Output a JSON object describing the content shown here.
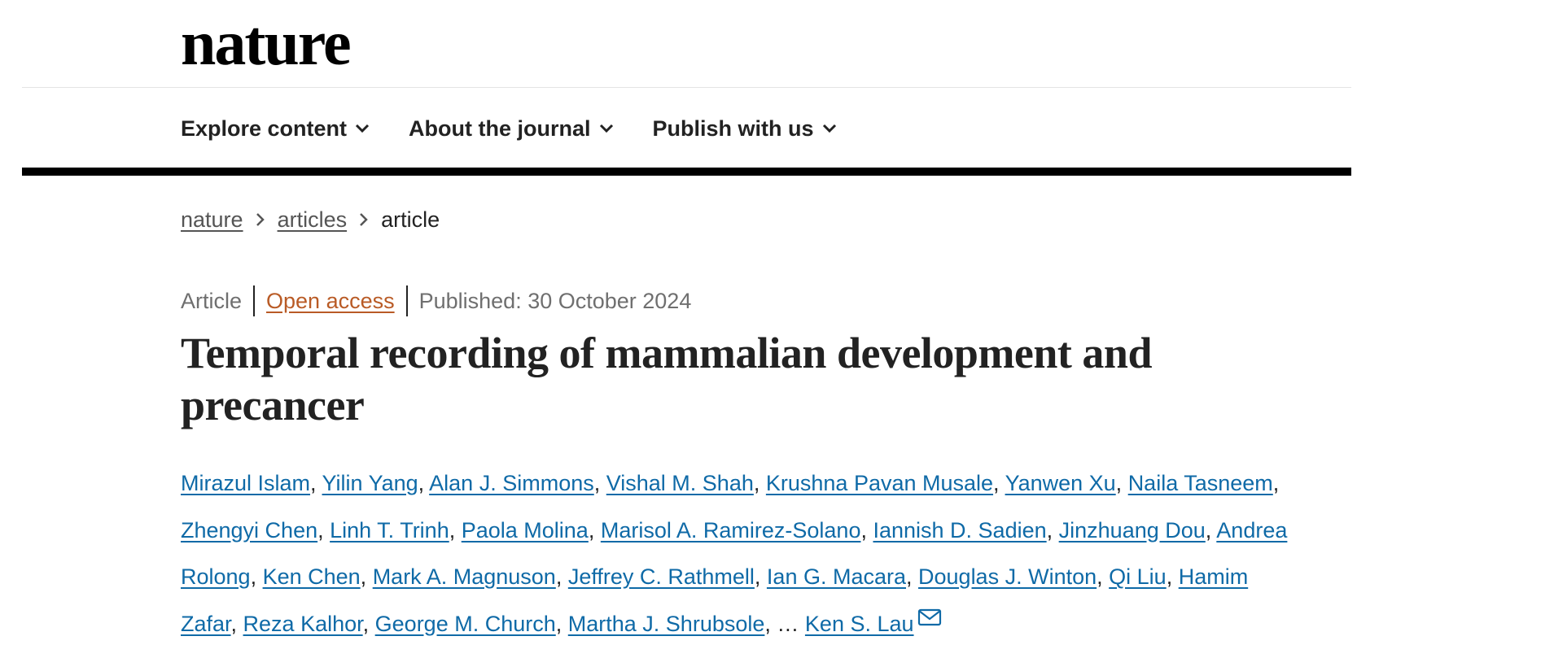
{
  "header": {
    "logo_text": "nature",
    "nav": [
      {
        "label": "Explore content"
      },
      {
        "label": "About the journal"
      },
      {
        "label": "Publish with us"
      }
    ]
  },
  "breadcrumb": {
    "items": [
      "nature",
      "articles"
    ],
    "current": "article"
  },
  "article": {
    "type": "Article",
    "access": "Open access",
    "published": "Published: 30 October 2024",
    "title": "Temporal recording of mammalian development and precancer",
    "authors": [
      "Mirazul Islam",
      "Yilin Yang",
      "Alan J. Simmons",
      "Vishal M. Shah",
      "Krushna Pavan Musale",
      "Yanwen Xu",
      "Naila Tasneem",
      "Zhengyi Chen",
      "Linh T. Trinh",
      "Paola Molina",
      "Marisol A. Ramirez-Solano",
      "Iannish D. Sadien",
      "Jinzhuang Dou",
      "Andrea Rolong",
      "Ken Chen",
      "Mark A. Magnuson",
      "Jeffrey C. Rathmell",
      "Ian G. Macara",
      "Douglas J. Winton",
      "Qi Liu",
      "Hamim Zafar",
      "Reza Kalhor",
      "George M. Church",
      "Martha J. Shrubsole"
    ],
    "ellipsis": "…",
    "corresponding_author": "Ken S. Lau",
    "corresponding_icon": "mail-icon"
  },
  "colors": {
    "link": "#0f6aa7",
    "open_access": "#b95b26",
    "meta_text": "#6f6f6f",
    "text": "#222222"
  }
}
